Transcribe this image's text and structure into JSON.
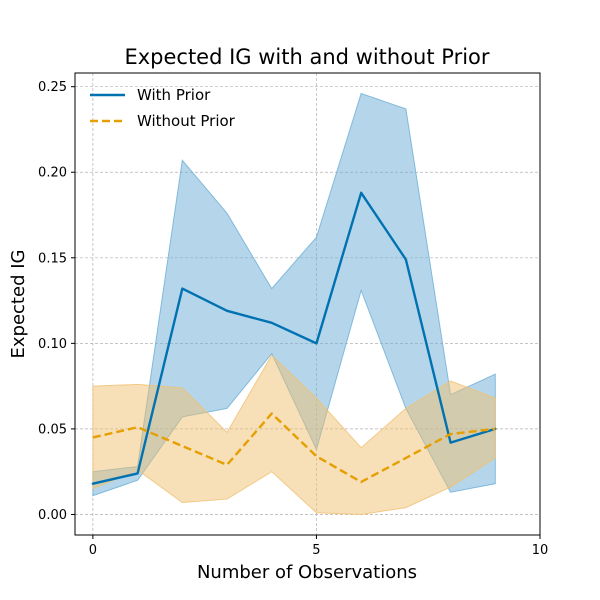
{
  "chart_data": {
    "type": "line",
    "title": "Expected IG with and without Prior",
    "xlabel": "Number of Observations",
    "ylabel": "Expected IG",
    "xlim": [
      -0.4,
      10
    ],
    "ylim": [
      -0.012,
      0.258
    ],
    "xticks": [
      0,
      5,
      10
    ],
    "yticks": [
      0.0,
      0.05,
      0.1,
      0.15,
      0.2,
      0.25
    ],
    "ytick_labels": [
      "0.00",
      "0.05",
      "0.10",
      "0.15",
      "0.20",
      "0.25"
    ],
    "grid": true,
    "legend_position": "top-left",
    "x": [
      0,
      1,
      2,
      3,
      4,
      5,
      6,
      7,
      8,
      9
    ],
    "series": [
      {
        "name": "With Prior",
        "color": "#0072b2",
        "style": "solid",
        "values": [
          0.018,
          0.024,
          0.132,
          0.119,
          0.112,
          0.1,
          0.188,
          0.149,
          0.042,
          0.05
        ],
        "band_lower": [
          0.011,
          0.02,
          0.057,
          0.062,
          0.094,
          0.038,
          0.131,
          0.062,
          0.013,
          0.018
        ],
        "band_upper": [
          0.025,
          0.028,
          0.207,
          0.176,
          0.132,
          0.162,
          0.246,
          0.237,
          0.07,
          0.082
        ],
        "band_color": "#6baed6"
      },
      {
        "name": "Without Prior",
        "color": "#e69f00",
        "style": "dashed",
        "values": [
          0.045,
          0.051,
          0.04,
          0.029,
          0.059,
          0.034,
          0.019,
          0.033,
          0.047,
          0.05
        ],
        "band_lower": [
          0.015,
          0.026,
          0.007,
          0.009,
          0.025,
          0.001,
          0.0,
          0.004,
          0.016,
          0.033
        ],
        "band_upper": [
          0.075,
          0.076,
          0.074,
          0.048,
          0.093,
          0.068,
          0.039,
          0.062,
          0.078,
          0.068
        ],
        "band_color": "#f0c070"
      }
    ]
  }
}
